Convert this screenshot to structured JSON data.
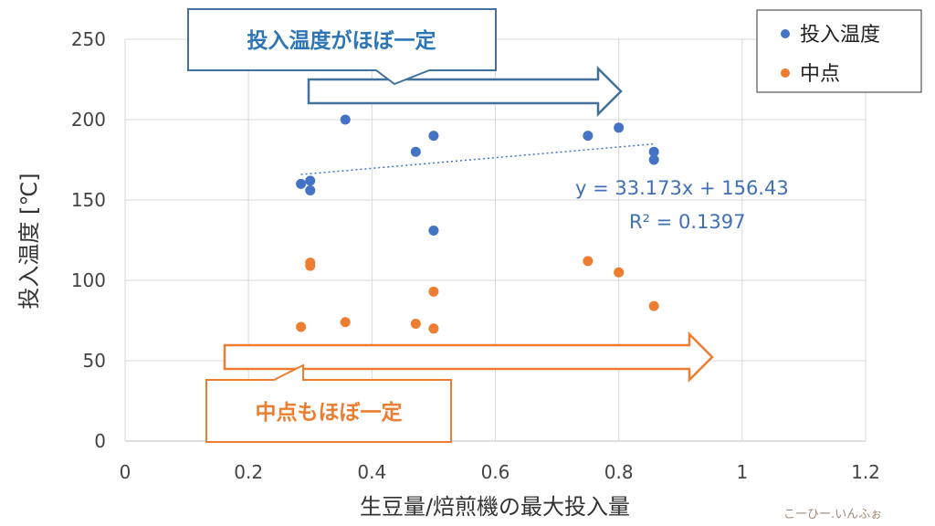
{
  "chart_data": {
    "type": "scatter",
    "title": "",
    "xlabel": "生豆量/焙煎機の最大投入量",
    "ylabel": "投入温度 [℃]",
    "xlim": [
      0,
      1.2
    ],
    "ylim": [
      0,
      250
    ],
    "x_ticks": [
      "0",
      "0.2",
      "0.4",
      "0.6",
      "0.8",
      "1",
      "1.2"
    ],
    "y_ticks": [
      "0",
      "50",
      "100",
      "150",
      "200",
      "250"
    ],
    "grid": true,
    "legend_position": "top-right",
    "series": [
      {
        "name": "投入温度",
        "color": "#4472c4",
        "points": [
          {
            "x": 0.285,
            "y": 160
          },
          {
            "x": 0.3,
            "y": 162
          },
          {
            "x": 0.3,
            "y": 156
          },
          {
            "x": 0.357,
            "y": 200
          },
          {
            "x": 0.471,
            "y": 180
          },
          {
            "x": 0.5,
            "y": 190
          },
          {
            "x": 0.5,
            "y": 131
          },
          {
            "x": 0.75,
            "y": 190
          },
          {
            "x": 0.8,
            "y": 195
          },
          {
            "x": 0.857,
            "y": 180
          },
          {
            "x": 0.857,
            "y": 175
          }
        ]
      },
      {
        "name": "中点",
        "color": "#ed7d31",
        "points": [
          {
            "x": 0.285,
            "y": 71
          },
          {
            "x": 0.3,
            "y": 111
          },
          {
            "x": 0.3,
            "y": 109
          },
          {
            "x": 0.357,
            "y": 74
          },
          {
            "x": 0.471,
            "y": 73
          },
          {
            "x": 0.5,
            "y": 70
          },
          {
            "x": 0.5,
            "y": 93
          },
          {
            "x": 0.75,
            "y": 112
          },
          {
            "x": 0.8,
            "y": 105
          },
          {
            "x": 0.857,
            "y": 84
          }
        ]
      }
    ],
    "trendline": {
      "series": "投入温度",
      "slope": 33.173,
      "intercept": 156.43,
      "x_range": [
        0.285,
        0.857
      ],
      "equation": "y = 33.173x + 156.43",
      "r_squared": "R² = 0.1397"
    },
    "annotations": [
      {
        "text": "投入温度がほぼ一定",
        "color": "#2e75b6",
        "border": "#41719c"
      },
      {
        "text": "中点もほぼ一定",
        "color": "#ed7d31",
        "border": "#ed7d31"
      }
    ]
  },
  "watermark": "こーひー.いんふぉ"
}
